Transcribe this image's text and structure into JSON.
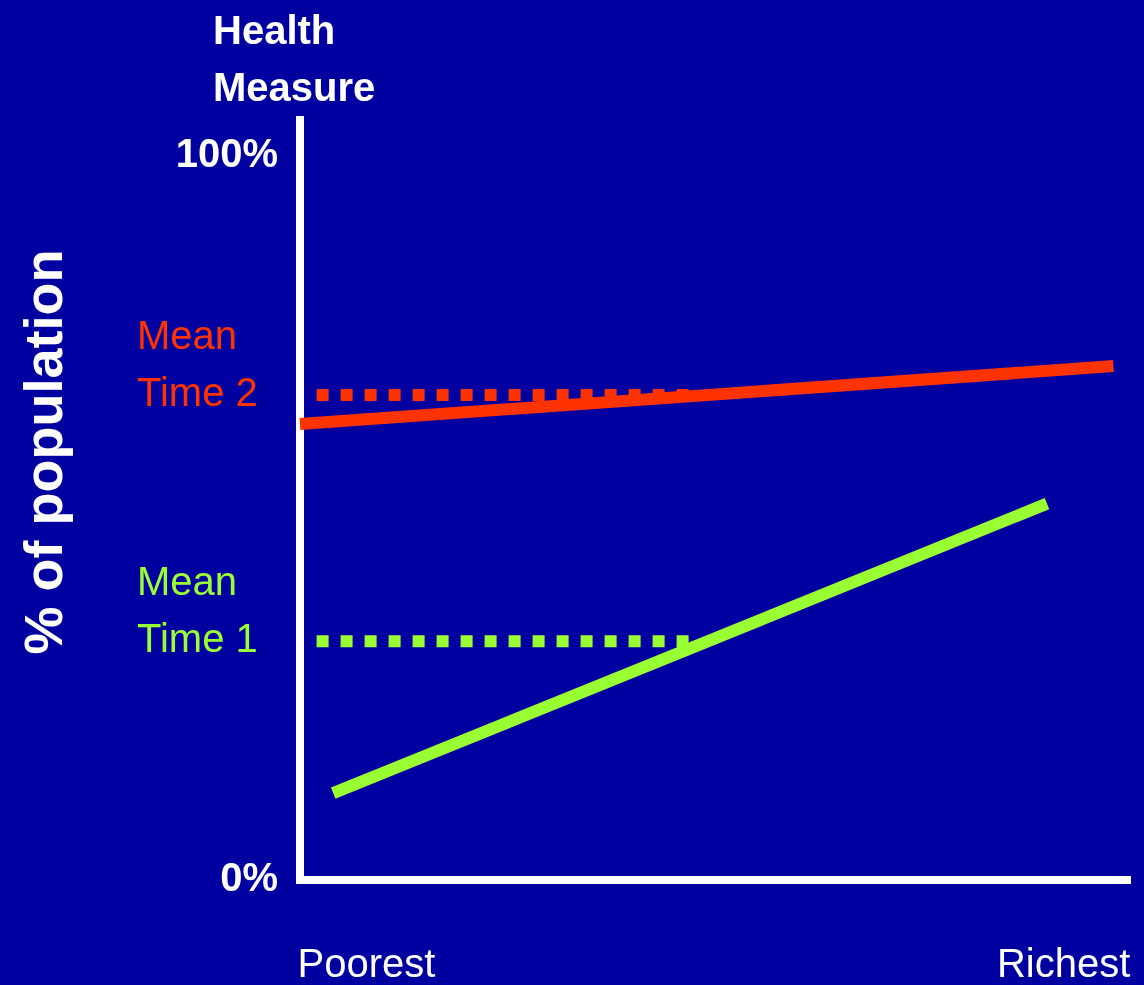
{
  "chart_data": {
    "type": "line",
    "title": "Health Measure",
    "ylabel": "% of population",
    "categories": [
      null,
      null,
      null,
      null,
      "Poorest",
      null,
      null,
      null,
      null,
      null,
      null,
      null,
      null,
      null,
      null,
      null,
      null,
      null,
      null,
      null,
      null,
      null,
      null,
      null,
      null,
      null,
      null,
      null,
      null,
      null,
      null,
      null,
      null,
      null,
      null,
      null,
      null,
      null,
      null,
      null,
      null,
      null,
      null,
      null,
      null,
      null,
      "Richest",
      null,
      null,
      null,
      null
    ],
    "ylim": [
      0,
      105
    ],
    "yticks": [
      {
        "value": 0,
        "label": "0%"
      },
      {
        "value": 100,
        "label": "100%"
      }
    ],
    "series": [
      {
        "color": "#ff3300",
        "line_style": "solid",
        "values": [
          63,
          null,
          null,
          null,
          null,
          null,
          null,
          null,
          null,
          null,
          null,
          null,
          null,
          null,
          null,
          null,
          null,
          null,
          null,
          null,
          null,
          null,
          null,
          null,
          null,
          null,
          null,
          null,
          null,
          null,
          null,
          null,
          null,
          null,
          null,
          null,
          null,
          null,
          null,
          null,
          null,
          null,
          null,
          null,
          null,
          null,
          null,
          null,
          null,
          71,
          null
        ]
      },
      {
        "name": "Mean Time 2",
        "color": "#ff3300",
        "line_style": "dotted",
        "values": [
          null,
          67,
          null,
          null,
          null,
          null,
          null,
          null,
          null,
          null,
          null,
          null,
          null,
          null,
          null,
          null,
          null,
          null,
          null,
          null,
          null,
          null,
          null,
          null,
          67,
          null,
          null,
          null,
          null,
          null,
          null,
          null,
          null,
          null,
          null,
          null,
          null,
          null,
          null,
          null,
          null,
          null,
          null,
          null,
          null,
          null,
          null,
          null,
          null,
          null,
          null
        ]
      },
      {
        "color": "#99ff33",
        "line_style": "solid",
        "values": [
          null,
          null,
          12,
          null,
          null,
          null,
          null,
          null,
          null,
          null,
          null,
          null,
          null,
          null,
          null,
          null,
          null,
          null,
          null,
          null,
          null,
          null,
          null,
          null,
          null,
          null,
          null,
          null,
          null,
          null,
          null,
          null,
          null,
          null,
          null,
          null,
          null,
          null,
          null,
          null,
          null,
          null,
          null,
          null,
          null,
          52,
          null,
          null,
          null,
          null,
          null
        ]
      },
      {
        "name": "Mean Time 1",
        "color": "#99ff33",
        "line_style": "dotted",
        "values": [
          null,
          33,
          null,
          null,
          null,
          null,
          null,
          null,
          null,
          null,
          null,
          null,
          null,
          null,
          null,
          null,
          null,
          null,
          null,
          null,
          null,
          null,
          null,
          null,
          33,
          null,
          null,
          null,
          null,
          null,
          null,
          null,
          null,
          null,
          null,
          null,
          null,
          null,
          null,
          null,
          null,
          null,
          null,
          null,
          null,
          null,
          null,
          null,
          null,
          null,
          null
        ]
      }
    ]
  }
}
